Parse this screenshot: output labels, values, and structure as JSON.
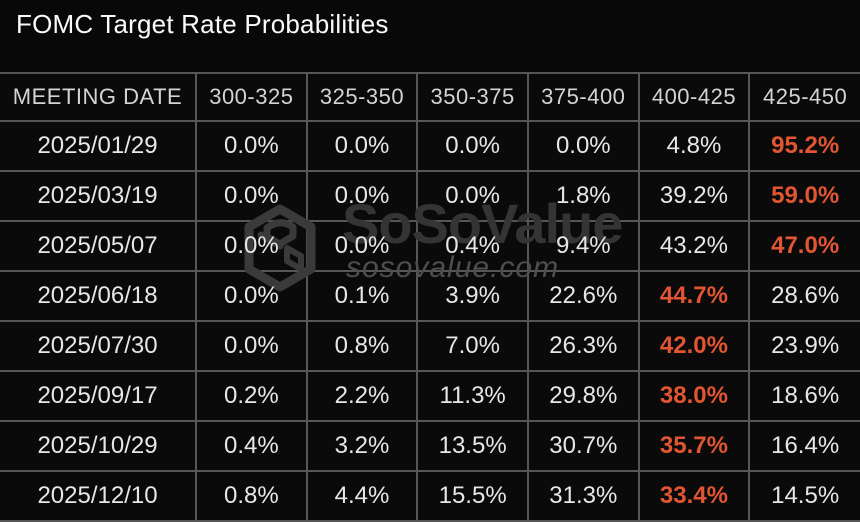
{
  "title": "FOMC Target Rate Probabilities",
  "watermark": {
    "brand": "SoSoValue",
    "domain": "sosovalue.com",
    "logo": "sosovalue-cube-logo"
  },
  "colors": {
    "background": "#080808",
    "cell_background": "#0a0a0a",
    "grid_border": "#565656",
    "title_text": "#fafafa",
    "header_text": "#d6d4d2",
    "cell_text": "#e9e7e4",
    "highlight": "#e15532",
    "watermark_brand": "#343434",
    "watermark_domain": "#4e4e4e"
  },
  "chart_data": {
    "type": "table",
    "title": "FOMC Target Rate Probabilities",
    "columns": [
      "MEETING DATE",
      "300-325",
      "325-350",
      "350-375",
      "375-400",
      "400-425",
      "425-450"
    ],
    "rows": [
      {
        "date": "2025/01/29",
        "values": [
          "0.0%",
          "0.0%",
          "0.0%",
          "0.0%",
          "4.8%",
          "95.2%"
        ],
        "highlight_index": 5
      },
      {
        "date": "2025/03/19",
        "values": [
          "0.0%",
          "0.0%",
          "0.0%",
          "1.8%",
          "39.2%",
          "59.0%"
        ],
        "highlight_index": 5
      },
      {
        "date": "2025/05/07",
        "values": [
          "0.0%",
          "0.0%",
          "0.4%",
          "9.4%",
          "43.2%",
          "47.0%"
        ],
        "highlight_index": 5
      },
      {
        "date": "2025/06/18",
        "values": [
          "0.0%",
          "0.1%",
          "3.9%",
          "22.6%",
          "44.7%",
          "28.6%"
        ],
        "highlight_index": 4
      },
      {
        "date": "2025/07/30",
        "values": [
          "0.0%",
          "0.8%",
          "7.0%",
          "26.3%",
          "42.0%",
          "23.9%"
        ],
        "highlight_index": 4
      },
      {
        "date": "2025/09/17",
        "values": [
          "0.2%",
          "2.2%",
          "11.3%",
          "29.8%",
          "38.0%",
          "18.6%"
        ],
        "highlight_index": 4
      },
      {
        "date": "2025/10/29",
        "values": [
          "0.4%",
          "3.2%",
          "13.5%",
          "30.7%",
          "35.7%",
          "16.4%"
        ],
        "highlight_index": 4
      },
      {
        "date": "2025/12/10",
        "values": [
          "0.8%",
          "4.4%",
          "15.5%",
          "31.3%",
          "33.4%",
          "14.5%"
        ],
        "highlight_index": 4
      }
    ],
    "highlight_note": "highest-probability cell in each row rendered in orange bold",
    "legend_position": "none",
    "grid": true
  }
}
